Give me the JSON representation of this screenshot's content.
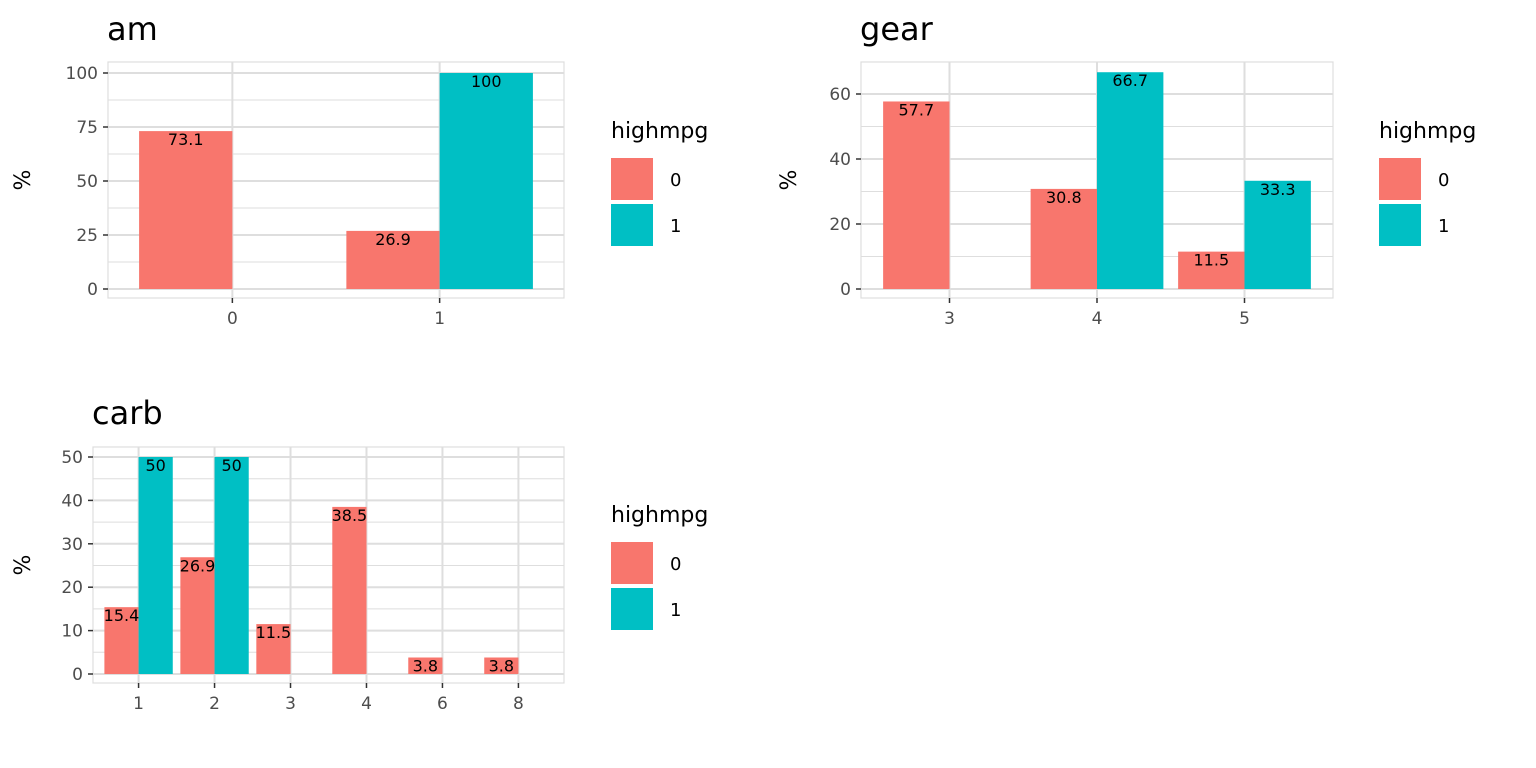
{
  "colors": {
    "series_0": "#F8766D",
    "series_1": "#00BFC4",
    "grid": "#DEDEDE",
    "panel_border": "#DEDEDE"
  },
  "chart_data": [
    {
      "type": "bar",
      "title": "am",
      "xlabel": "",
      "ylabel": "%",
      "ylim": [
        0,
        100
      ],
      "yticks": [
        0,
        25,
        50,
        75,
        100
      ],
      "categories": [
        "0",
        "1"
      ],
      "legend": {
        "title": "highmpg",
        "position": "right",
        "entries": [
          "0",
          "1"
        ]
      },
      "series": [
        {
          "name": "0",
          "values": [
            73.1,
            26.9
          ]
        },
        {
          "name": "1",
          "values": [
            null,
            100
          ]
        }
      ],
      "labels": [
        {
          "series": 0,
          "cat": 0,
          "text": "73.1"
        },
        {
          "series": 0,
          "cat": 1,
          "text": "26.9"
        },
        {
          "series": 1,
          "cat": 1,
          "text": "100"
        }
      ]
    },
    {
      "type": "bar",
      "title": "gear",
      "xlabel": "",
      "ylabel": "%",
      "ylim": [
        0,
        60
      ],
      "yticks": [
        0,
        20,
        40,
        60
      ],
      "categories": [
        "3",
        "4",
        "5"
      ],
      "legend": {
        "title": "highmpg",
        "position": "right",
        "entries": [
          "0",
          "1"
        ]
      },
      "series": [
        {
          "name": "0",
          "values": [
            57.7,
            30.8,
            11.5
          ]
        },
        {
          "name": "1",
          "values": [
            null,
            66.7,
            33.3
          ]
        }
      ],
      "labels": [
        {
          "series": 0,
          "cat": 0,
          "text": "57.7"
        },
        {
          "series": 0,
          "cat": 1,
          "text": "30.8"
        },
        {
          "series": 1,
          "cat": 1,
          "text": "66.7"
        },
        {
          "series": 0,
          "cat": 2,
          "text": "11.5"
        },
        {
          "series": 1,
          "cat": 2,
          "text": "33.3"
        }
      ]
    },
    {
      "type": "bar",
      "title": "carb",
      "xlabel": "",
      "ylabel": "%",
      "ylim": [
        0,
        50
      ],
      "yticks": [
        0,
        10,
        20,
        30,
        40,
        50
      ],
      "categories": [
        "1",
        "2",
        "3",
        "4",
        "6",
        "8"
      ],
      "legend": {
        "title": "highmpg",
        "position": "right",
        "entries": [
          "0",
          "1"
        ]
      },
      "series": [
        {
          "name": "0",
          "values": [
            15.4,
            26.9,
            11.5,
            38.5,
            3.8,
            3.8
          ]
        },
        {
          "name": "1",
          "values": [
            50,
            50,
            null,
            null,
            null,
            null
          ]
        }
      ],
      "labels": [
        {
          "series": 0,
          "cat": 0,
          "text": "15.4"
        },
        {
          "series": 1,
          "cat": 0,
          "text": "50"
        },
        {
          "series": 0,
          "cat": 1,
          "text": "26.9"
        },
        {
          "series": 1,
          "cat": 1,
          "text": "50"
        },
        {
          "series": 0,
          "cat": 2,
          "text": "11.5"
        },
        {
          "series": 0,
          "cat": 3,
          "text": "38.5"
        },
        {
          "series": 0,
          "cat": 4,
          "text": "3.8"
        },
        {
          "series": 0,
          "cat": 5,
          "text": "3.8"
        }
      ]
    }
  ]
}
